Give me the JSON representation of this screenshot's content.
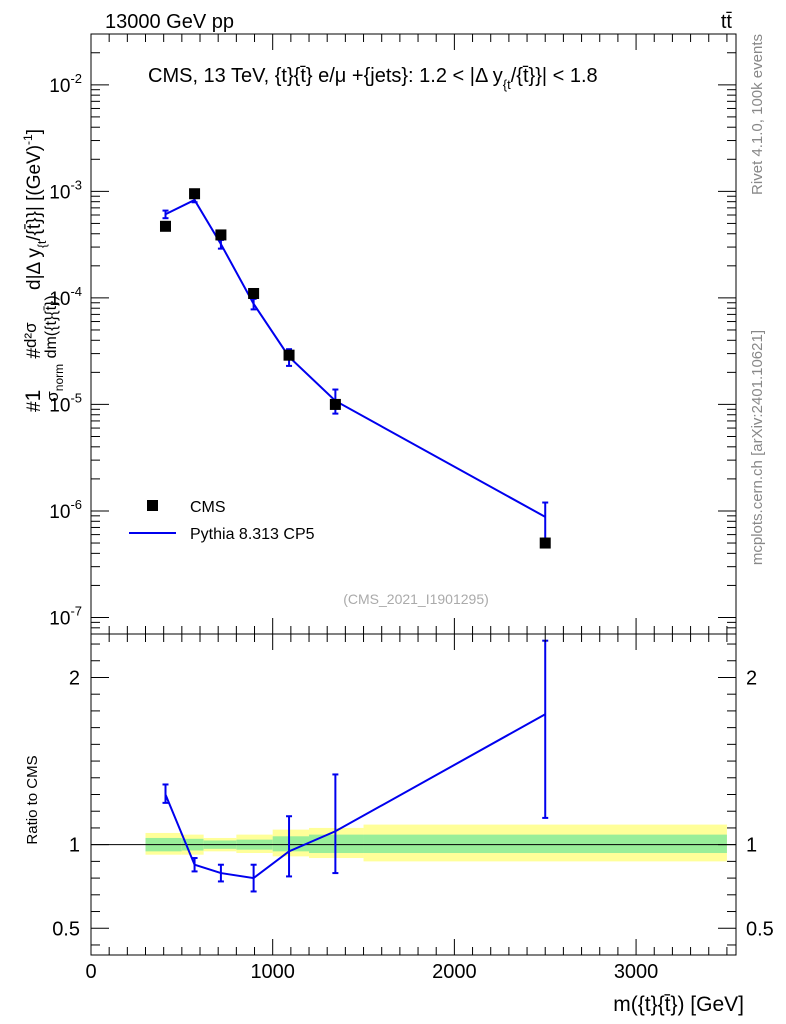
{
  "header": {
    "left": "13000 GeV pp",
    "right": "tt̄"
  },
  "side_labels": {
    "rivet": "Rivet 4.1.0,  100k events",
    "source": "mcplots.cern.ch [arXiv:2401.10621]"
  },
  "colors": {
    "data": "#000000",
    "mc": "#0000ee",
    "band_inner": "#99ee99",
    "band_outer": "#ffff99"
  },
  "chart_data": [
    {
      "type": "line",
      "panel": "main",
      "title": "CMS, 13 TeV, {t}{t̄} e/μ +{jets}: 1.2 < |Δ y_{t}/{t̄}}| < 1.8",
      "title_main": "CMS, 13 TeV, {t}{t̄} e/μ +{jets}: 1.2 < |Δ y",
      "title_sub": "{t",
      "title_end": "/{t̄}}| < 1.8",
      "watermark": "(CMS_2021_I1901295)",
      "ylabel": "#¹⁄σnorm #d²σ/dm({t}{t̄}) d|Δ y_{t}/{t̄}}| [(GeV)⁻¹]",
      "ylabel_parts": {
        "p1": "#",
        "frac1_num": "1",
        "frac1_den": "σ",
        "frac1_den_sub": "norm",
        "p2": " #",
        "frac2_num": "d²σ",
        "frac2_den": "dm({t}{t̄})",
        "p3": " d|Δ y",
        "p3_sub": "{t",
        "p4": "/{t̄}}| [(GeV)",
        "p4_sup": "-1",
        "p5": "]"
      },
      "yscale": "log",
      "ylim": [
        7e-08,
        0.03
      ],
      "xlim": [
        0,
        3550
      ],
      "y_ticks": [
        {
          "value": 1e-07,
          "base": "10",
          "exp": "-7"
        },
        {
          "value": 1e-06,
          "base": "10",
          "exp": "-6"
        },
        {
          "value": 1e-05,
          "base": "10",
          "exp": "-5"
        },
        {
          "value": 0.0001,
          "base": "10",
          "exp": "-4"
        },
        {
          "value": 0.001,
          "base": "10",
          "exp": "-3"
        },
        {
          "value": 0.01,
          "base": "10",
          "exp": "-2"
        }
      ],
      "legend": [
        {
          "label": "CMS",
          "style": "marker"
        },
        {
          "label": "Pythia 8.313 CP5",
          "style": "line"
        }
      ],
      "series": [
        {
          "name": "CMS",
          "style": "marker",
          "x": [
            410,
            570,
            715,
            895,
            1090,
            1345,
            2500
          ],
          "y": [
            0.00047,
            0.00095,
            0.00039,
            0.00011,
            2.9e-05,
            1e-05,
            5e-07
          ]
        },
        {
          "name": "Pythia 8.313 CP5",
          "style": "line",
          "x": [
            410,
            570,
            715,
            895,
            1090,
            1345,
            2500
          ],
          "y": [
            0.00061,
            0.00083,
            0.00032,
            8.8e-05,
            2.8e-05,
            1.08e-05,
            8.8e-07
          ],
          "err_low": [
            0.00056,
            0.00079,
            0.00029,
            7.8e-05,
            2.3e-05,
            8.2e-06,
            5.5e-07
          ],
          "err_high": [
            0.00066,
            0.00088,
            0.00035,
            9.8e-05,
            3.3e-05,
            1.38e-05,
            1.2e-06
          ]
        }
      ]
    },
    {
      "type": "line",
      "panel": "ratio",
      "xlabel": "m({t}{t̄}) [GeV]",
      "ylabel": "Ratio to CMS",
      "yscale": "linear",
      "ylim": [
        0.34,
        2.26
      ],
      "xlim": [
        0,
        3550
      ],
      "x_ticks": [
        {
          "value": 0,
          "label": "0"
        },
        {
          "value": 1000,
          "label": "1000"
        },
        {
          "value": 2000,
          "label": "2000"
        },
        {
          "value": 3000,
          "label": "3000"
        }
      ],
      "y_ticks": [
        {
          "value": 0.5,
          "label": "0.5"
        },
        {
          "value": 1,
          "label": "1"
        },
        {
          "value": 2,
          "label": "2"
        }
      ],
      "bands": [
        {
          "x0": 300,
          "x1": 500,
          "inner": [
            0.96,
            1.04
          ],
          "outer": [
            0.94,
            1.07
          ]
        },
        {
          "x0": 500,
          "x1": 620,
          "inner": [
            0.965,
            1.035
          ],
          "outer": [
            0.94,
            1.06
          ]
        },
        {
          "x0": 620,
          "x1": 800,
          "inner": [
            0.975,
            1.025
          ],
          "outer": [
            0.96,
            1.04
          ]
        },
        {
          "x0": 800,
          "x1": 1000,
          "inner": [
            0.97,
            1.03
          ],
          "outer": [
            0.95,
            1.06
          ]
        },
        {
          "x0": 1000,
          "x1": 1200,
          "inner": [
            0.96,
            1.05
          ],
          "outer": [
            0.93,
            1.09
          ]
        },
        {
          "x0": 1200,
          "x1": 1500,
          "inner": [
            0.95,
            1.06
          ],
          "outer": [
            0.92,
            1.1
          ]
        },
        {
          "x0": 1500,
          "x1": 3500,
          "inner": [
            0.95,
            1.06
          ],
          "outer": [
            0.9,
            1.12
          ]
        }
      ],
      "series": [
        {
          "name": "Pythia 8.313 CP5",
          "x": [
            410,
            570,
            715,
            895,
            1090,
            1345,
            2500
          ],
          "y": [
            1.3,
            0.88,
            0.83,
            0.8,
            0.96,
            1.08,
            1.78
          ],
          "err_low": [
            1.25,
            0.84,
            0.78,
            0.72,
            0.81,
            0.83,
            1.16
          ],
          "err_high": [
            1.36,
            0.92,
            0.88,
            0.88,
            1.17,
            1.42,
            2.22
          ]
        }
      ]
    }
  ]
}
